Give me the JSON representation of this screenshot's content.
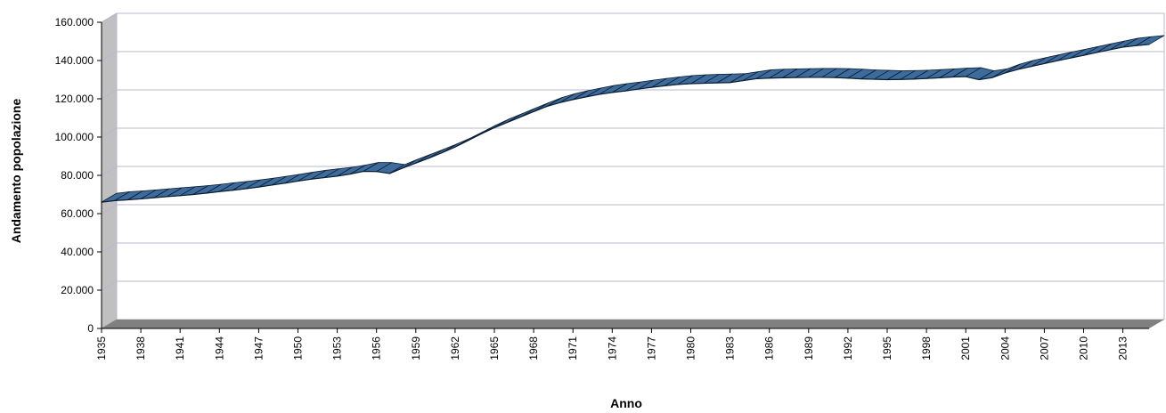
{
  "chart_data": {
    "type": "line",
    "title": "",
    "xlabel": "Anno",
    "ylabel": "Andamento popolazione",
    "ylim": [
      0,
      160000
    ],
    "y_ticks": [
      "0",
      "20.000",
      "40.000",
      "60.000",
      "80.000",
      "100.000",
      "120.000",
      "140.000",
      "160.000"
    ],
    "x_ticks": [
      "1935",
      "1938",
      "1941",
      "1944",
      "1947",
      "1950",
      "1953",
      "1956",
      "1959",
      "1962",
      "1965",
      "1968",
      "1971",
      "1974",
      "1977",
      "1980",
      "1983",
      "1986",
      "1989",
      "1992",
      "1995",
      "1998",
      "2001",
      "2004",
      "2007",
      "2010",
      "2013"
    ],
    "grid": true,
    "style": "3d-ribbon",
    "colors": {
      "series": "#3d6b9c",
      "series_edge": "#0d1f33",
      "wall": "#c0c0c0",
      "floor": "#808080",
      "grid": "#b8b8cf",
      "plot_bg": "#ffffff"
    },
    "series": [
      {
        "x": [
          1935,
          1936,
          1937,
          1938,
          1939,
          1940,
          1941,
          1942,
          1943,
          1944,
          1945,
          1946,
          1947,
          1948,
          1949,
          1950,
          1951,
          1952,
          1953,
          1954,
          1955,
          1956,
          1957,
          1958,
          1959,
          1960,
          1961,
          1962,
          1963,
          1964,
          1965,
          1966,
          1967,
          1968,
          1969,
          1970,
          1971,
          1972,
          1973,
          1974,
          1975,
          1976,
          1977,
          1978,
          1979,
          1980,
          1981,
          1982,
          1983,
          1984,
          1985,
          1986,
          1987,
          1988,
          1989,
          1990,
          1991,
          1992,
          1993,
          1994,
          1995,
          1996,
          1997,
          1998,
          1999,
          2000,
          2001,
          2002,
          2003,
          2004,
          2005,
          2006,
          2007,
          2008,
          2009,
          2010,
          2011,
          2012,
          2013,
          2014,
          2015
        ],
        "values": [
          66000,
          66800,
          67200,
          67700,
          68300,
          68900,
          69400,
          70000,
          70700,
          71500,
          72200,
          73000,
          73900,
          74900,
          75900,
          77000,
          78000,
          78800,
          79600,
          80700,
          82100,
          82000,
          81000,
          83800,
          86400,
          89000,
          91800,
          94800,
          98200,
          101700,
          104900,
          107700,
          110500,
          113300,
          116000,
          118000,
          119600,
          121000,
          122300,
          123300,
          124100,
          125100,
          126000,
          126800,
          127500,
          127900,
          128100,
          128300,
          128500,
          129500,
          130500,
          130800,
          131000,
          131100,
          131200,
          131200,
          131100,
          130800,
          130400,
          130200,
          130000,
          130100,
          130300,
          130600,
          131000,
          131400,
          131600,
          130000,
          131000,
          133500,
          135400,
          136900,
          138400,
          139900,
          141300,
          142700,
          144200,
          145600,
          147000,
          147800,
          148400
        ]
      }
    ]
  }
}
